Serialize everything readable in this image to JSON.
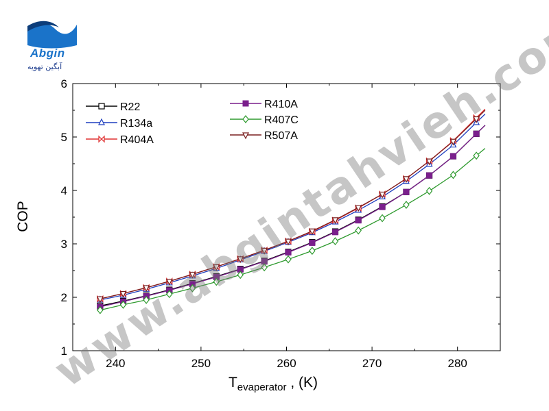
{
  "logo": {
    "brand": "Abgin",
    "subtitle": "آبگین تهویه"
  },
  "watermark": "www.abgintahvieh.com",
  "chart_data": {
    "type": "line",
    "xlabel_main": "T",
    "xlabel_sub": "evaperator",
    "xlabel_unit": " , (K)",
    "ylabel": "COP",
    "xlim": [
      235,
      285
    ],
    "ylim": [
      1,
      6
    ],
    "xticks": [
      240,
      250,
      260,
      270,
      280
    ],
    "yticks": [
      1,
      2,
      3,
      4,
      5,
      6
    ],
    "grid": false,
    "legend_placement": "top-left",
    "x": [
      238.2,
      240.9,
      243.6,
      246.3,
      249.0,
      251.8,
      254.6,
      257.4,
      260.2,
      263.0,
      265.7,
      268.4,
      271.2,
      274.0,
      276.7,
      279.5,
      282.2
    ],
    "series": [
      {
        "name": "R22",
        "marker": "square",
        "color": "#000000",
        "values": [
          1.84,
          1.93,
          2.03,
          2.14,
          2.26,
          2.39,
          2.53,
          2.68,
          2.85,
          3.03,
          3.23,
          3.45,
          3.7,
          3.97,
          4.28,
          4.64,
          5.06
        ]
      },
      {
        "name": "R134a",
        "marker": "triangle-up",
        "color": "#1f3fbf",
        "values": [
          1.95,
          2.04,
          2.15,
          2.27,
          2.4,
          2.54,
          2.7,
          2.86,
          3.03,
          3.21,
          3.41,
          3.63,
          3.88,
          4.17,
          4.49,
          4.85,
          5.27
        ]
      },
      {
        "name": "R404A",
        "marker": "bowtie",
        "color": "#e03030",
        "values": [
          1.97,
          2.07,
          2.18,
          2.3,
          2.43,
          2.57,
          2.72,
          2.88,
          3.05,
          3.23,
          3.44,
          3.67,
          3.93,
          4.22,
          4.55,
          4.93,
          5.36
        ]
      },
      {
        "name": "R410A",
        "marker": "square-filled",
        "color": "#7a1f8c",
        "values": [
          1.82,
          1.92,
          2.02,
          2.13,
          2.25,
          2.38,
          2.52,
          2.67,
          2.84,
          3.02,
          3.22,
          3.44,
          3.69,
          3.97,
          4.28,
          4.64,
          5.06
        ]
      },
      {
        "name": "R407C",
        "marker": "diamond",
        "color": "#2e9a2e",
        "values": [
          1.76,
          1.86,
          1.95,
          2.06,
          2.17,
          2.29,
          2.42,
          2.56,
          2.71,
          2.87,
          3.05,
          3.25,
          3.48,
          3.73,
          3.99,
          4.29,
          4.65
        ]
      },
      {
        "name": "R507A",
        "marker": "triangle-down",
        "color": "#7a1f1f",
        "values": [
          1.97,
          2.07,
          2.18,
          2.3,
          2.43,
          2.57,
          2.72,
          2.88,
          3.05,
          3.24,
          3.45,
          3.68,
          3.93,
          4.22,
          4.55,
          4.92,
          5.34
        ]
      }
    ]
  }
}
